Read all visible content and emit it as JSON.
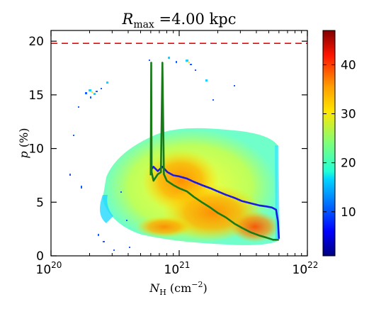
{
  "chart_data": {
    "type": "heatmap",
    "title_text": {
      "symbol": "R",
      "subscript": "max",
      "rest": " =4.00 kpc"
    },
    "xlabel": {
      "symbol": "N",
      "subscript": "H",
      "unit": " (cm",
      "unit_sup": "−2",
      "unit_end": ")"
    },
    "ylabel": {
      "symbol": "p",
      "unit": " (%)"
    },
    "x_scale": "log",
    "xlim": [
      1e+20,
      1e+22
    ],
    "ylim": [
      0,
      21
    ],
    "x_ticks": [
      {
        "value": 1e+20,
        "base": "10",
        "exp": "20"
      },
      {
        "value": 1e+21,
        "base": "10",
        "exp": "21"
      },
      {
        "value": 1e+22,
        "base": "10",
        "exp": "22"
      }
    ],
    "y_ticks": [
      0,
      5,
      10,
      15,
      20
    ],
    "colorbar": {
      "colormap": "jet",
      "range": [
        1,
        47
      ],
      "ticks": [
        10,
        20,
        30,
        40
      ]
    },
    "reference_line": {
      "y": 19.8,
      "style": "dashed",
      "color": "#ff0000"
    },
    "series": [
      {
        "color": "#1a1ae6",
        "x": [
          6e+20,
          6.3e+20,
          6.8e+20,
          7.4e+20,
          8.1e+20,
          9e+20,
          1e+21,
          1.15e+21,
          1.3e+21,
          1.5e+21,
          1.75e+21,
          2e+21,
          2.3e+21,
          2.7e+21,
          3.1e+21,
          3.6e+21,
          4.2e+21,
          4.8e+21,
          5.3e+21,
          5.7e+21,
          5.9e+21,
          6e+21
        ],
        "y": [
          8.0,
          8.3,
          7.9,
          8.3,
          7.8,
          7.5,
          7.4,
          7.2,
          6.9,
          6.6,
          6.3,
          6.0,
          5.7,
          5.4,
          5.1,
          4.9,
          4.7,
          4.6,
          4.5,
          4.3,
          3.2,
          1.6
        ]
      },
      {
        "color": "#1a7a1a",
        "x": [
          6e+20,
          6.05e+20,
          6.1e+20,
          6.3e+20,
          6.8e+20,
          7.2e+20,
          7.4e+20,
          7.6e+20,
          8e+20,
          9e+20,
          1e+21,
          1.15e+21,
          1.3e+21,
          1.5e+21,
          1.75e+21,
          2e+21,
          2.3e+21,
          2.7e+21,
          3.1e+21,
          3.6e+21,
          4.2e+21,
          4.8e+21,
          5.4e+21,
          6e+21
        ],
        "y": [
          7.5,
          18.0,
          7.8,
          7.0,
          7.6,
          7.8,
          18.0,
          7.6,
          7.0,
          6.6,
          6.3,
          6.0,
          5.5,
          5.0,
          4.5,
          4.0,
          3.6,
          3.0,
          2.6,
          2.2,
          1.9,
          1.7,
          1.5,
          1.5
        ]
      }
    ]
  }
}
